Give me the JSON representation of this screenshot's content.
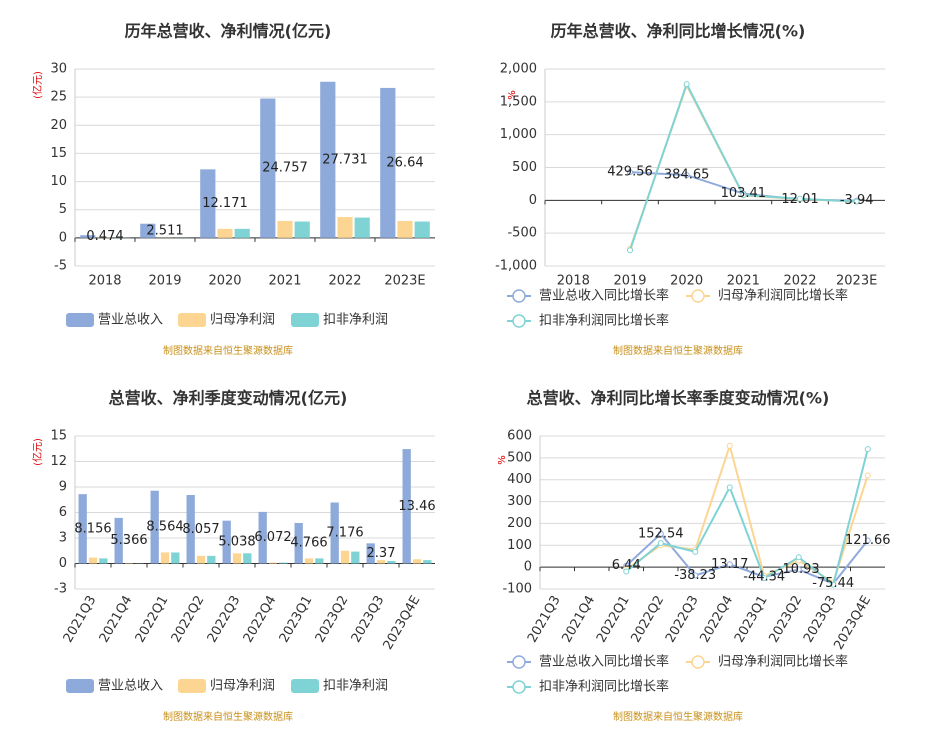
{
  "chart_data": [
    {
      "type": "bar",
      "title": "历年总营收、净利情况(亿元)",
      "y_label": "(亿元)",
      "source": "制图数据来自恒生聚源数据库",
      "categories": [
        "2018",
        "2019",
        "2020",
        "2021",
        "2022",
        "2023E"
      ],
      "series": [
        {
          "name": "营业总收入",
          "color": "#8eaadb",
          "values": [
            0.474,
            2.511,
            12.171,
            24.757,
            27.731,
            26.64
          ]
        },
        {
          "name": "归母净利润",
          "color": "#fcd593",
          "values": [
            0.05,
            0.03,
            1.6,
            3.0,
            3.7,
            3.0
          ]
        },
        {
          "name": "扣非净利润",
          "color": "#7fd3d5",
          "values": [
            0.04,
            0.02,
            1.6,
            2.9,
            3.6,
            2.9
          ]
        }
      ],
      "ylim": [
        -5,
        30
      ],
      "yticks": [
        -5,
        0,
        5,
        10,
        15,
        20,
        25,
        30
      ],
      "grid": true
    },
    {
      "type": "line",
      "title": "历年总营收、净利同比增长情况(%)",
      "y_label": "%",
      "source": "制图数据来自恒生聚源数据库",
      "categories": [
        "2018",
        "2019",
        "2020",
        "2021",
        "2022",
        "2023E"
      ],
      "series": [
        {
          "name": "营业总收入同比增长率",
          "color": "#8faadc",
          "values": [
            null,
            429.56,
            384.65,
            103.41,
            12.01,
            -3.94
          ]
        },
        {
          "name": "归母净利润同比增长率",
          "color": "#fcd593",
          "values": [
            null,
            -740,
            1750,
            75,
            18,
            -18
          ]
        },
        {
          "name": "扣非净利润同比增长率",
          "color": "#7fd3d5",
          "values": [
            null,
            -760,
            1770,
            80,
            25,
            -20
          ]
        }
      ],
      "ylim": [
        -1000,
        2000
      ],
      "yticks": [
        {
          "value": -1000,
          "label": "-1,000"
        },
        -500,
        0,
        500,
        {
          "value": 1000,
          "label": "1,000"
        },
        {
          "value": 1500,
          "label": "1,500"
        },
        {
          "value": 2000,
          "label": "2,000"
        }
      ],
      "grid": true
    },
    {
      "type": "bar",
      "title": "总营收、净利季度变动情况(亿元)",
      "y_label": "(亿元)",
      "source": "制图数据来自恒生聚源数据库",
      "categories": [
        "2021Q3",
        "2021Q4",
        "2022Q1",
        "2022Q2",
        "2022Q3",
        "2022Q4",
        "2023Q1",
        "2023Q2",
        "2023Q3",
        "2023Q4E"
      ],
      "series": [
        {
          "name": "营业总收入",
          "color": "#8eaadb",
          "values": [
            8.156,
            5.366,
            8.564,
            8.057,
            5.038,
            6.072,
            4.766,
            7.176,
            2.37,
            13.46
          ]
        },
        {
          "name": "归母净利润",
          "color": "#fcd593",
          "values": [
            0.7,
            0.05,
            1.3,
            0.9,
            1.2,
            0.1,
            0.6,
            1.5,
            0.4,
            0.5
          ]
        },
        {
          "name": "扣非净利润",
          "color": "#7fd3d5",
          "values": [
            0.6,
            0.03,
            1.3,
            0.9,
            1.2,
            0.1,
            0.6,
            1.4,
            0.3,
            0.4
          ]
        }
      ],
      "ylim": [
        -3,
        15
      ],
      "yticks": [
        -3,
        0,
        3,
        6,
        9,
        12,
        15
      ],
      "grid": true
    },
    {
      "type": "line",
      "title": "总营收、净利同比增长率季度变动情况(%)",
      "y_label": "%",
      "source": "制图数据来自恒生聚源数据库",
      "categories": [
        "2021Q3",
        "2021Q4",
        "2022Q1",
        "2022Q2",
        "2022Q3",
        "2022Q4",
        "2023Q1",
        "2023Q2",
        "2023Q3",
        "2023Q4E"
      ],
      "series": [
        {
          "name": "营业总收入同比增长率",
          "color": "#8faadc",
          "values": [
            null,
            null,
            6.44,
            152.54,
            -38.23,
            13.17,
            -44.34,
            -10.93,
            -75.44,
            121.66
          ]
        },
        {
          "name": "归母净利润同比增长率",
          "color": "#fcd593",
          "values": [
            null,
            null,
            -10,
            100,
            80,
            555,
            -40,
            30,
            -70,
            420
          ]
        },
        {
          "name": "扣非净利润同比增长率",
          "color": "#7fd3d5",
          "values": [
            null,
            null,
            -20,
            110,
            70,
            365,
            -50,
            45,
            -80,
            540
          ]
        }
      ],
      "ylim": [
        -100,
        600
      ],
      "yticks": [
        -100,
        0,
        100,
        200,
        300,
        400,
        500,
        600
      ],
      "grid": true
    }
  ]
}
